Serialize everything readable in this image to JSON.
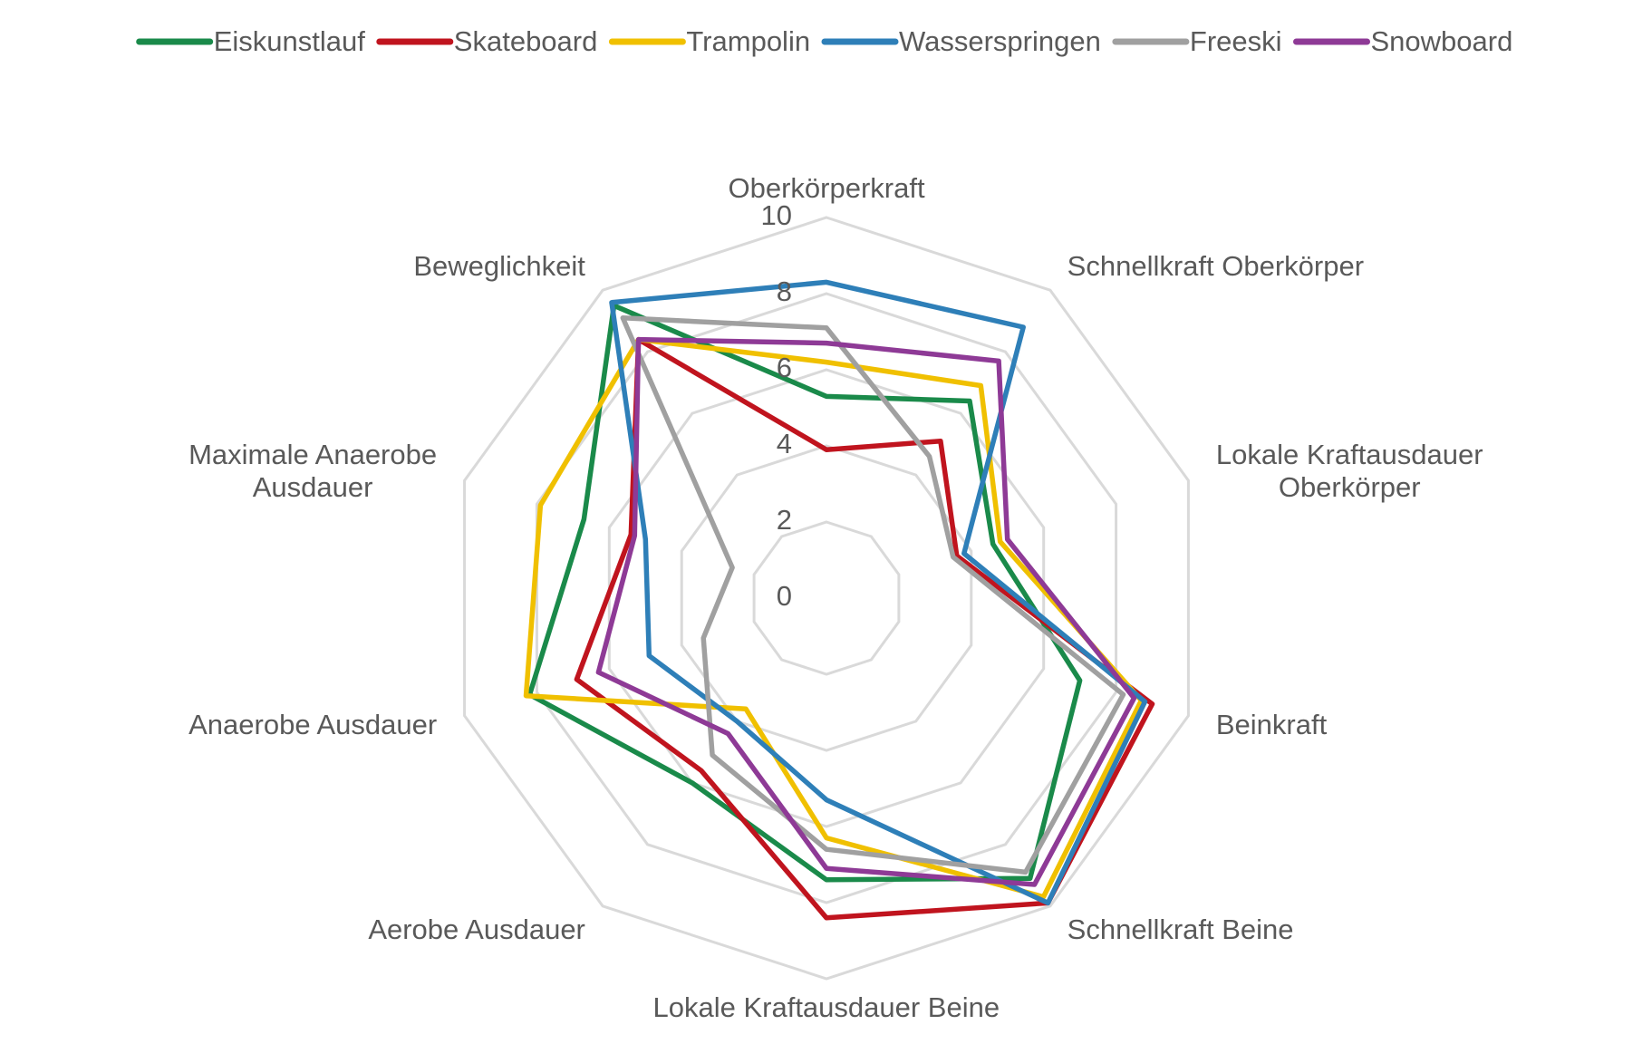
{
  "chart_data": {
    "type": "radar",
    "categories": [
      "Oberkörperkraft",
      "Schnellkraft Oberkörper",
      "Lokale Kraftausdauer\nOberkörper",
      "Beinkraft",
      "Schnellkraft Beine",
      "Lokale Kraftausdauer Beine",
      "Aerobe Ausdauer",
      "Anaerobe Ausdauer",
      "Maximale Anaerobe\nAusdauer",
      "Beweglichkeit"
    ],
    "series": [
      {
        "name": "Eiskunstlauf",
        "color": "#1a8a4a",
        "values": [
          5.3,
          6.4,
          4.6,
          7.0,
          9.1,
          7.4,
          6.0,
          8.2,
          6.7,
          9.5
        ]
      },
      {
        "name": "Skateboard",
        "color": "#c0141e",
        "values": [
          3.9,
          5.1,
          3.6,
          9.0,
          9.9,
          8.4,
          5.6,
          6.9,
          5.4,
          8.4
        ]
      },
      {
        "name": "Trampolin",
        "color": "#f0c000",
        "values": [
          6.2,
          6.9,
          4.8,
          8.7,
          9.7,
          6.3,
          3.6,
          8.3,
          7.9,
          8.4
        ]
      },
      {
        "name": "Wasserspringen",
        "color": "#2e7fb8",
        "values": [
          8.3,
          8.8,
          3.8,
          8.8,
          9.9,
          5.3,
          4.0,
          4.9,
          5.0,
          9.6
        ]
      },
      {
        "name": "Freeski",
        "color": "#a0a0a0",
        "values": [
          7.1,
          4.6,
          3.5,
          8.2,
          8.9,
          6.6,
          5.1,
          3.4,
          2.6,
          9.1
        ]
      },
      {
        "name": "Snowboard",
        "color": "#8e3a96",
        "values": [
          6.7,
          7.7,
          5.0,
          8.5,
          9.3,
          7.1,
          4.4,
          6.3,
          5.3,
          8.4
        ]
      }
    ],
    "ylim": [
      0,
      10
    ],
    "yticks": [
      0,
      2,
      4,
      6,
      8,
      10
    ],
    "grid": true,
    "legend": "top"
  }
}
